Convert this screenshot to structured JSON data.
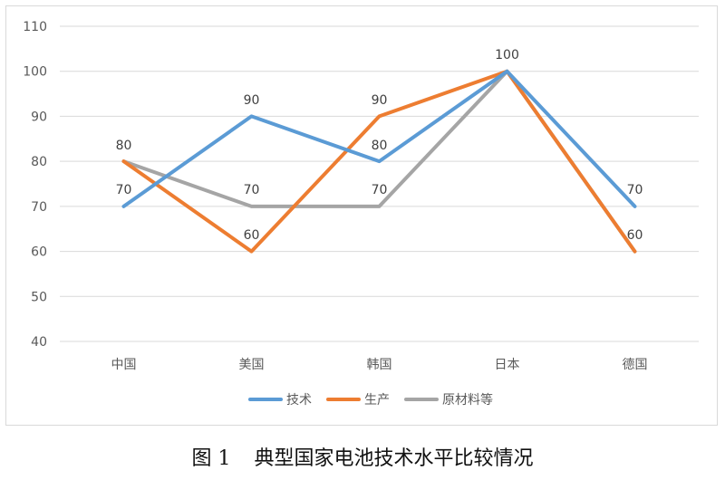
{
  "caption": {
    "number": "图 1",
    "text": "典型国家电池技术水平比较情况"
  },
  "chart_data": {
    "type": "line",
    "title": "",
    "xlabel": "",
    "ylabel": "",
    "categories": [
      "中国",
      "美国",
      "韩国",
      "日本",
      "德国"
    ],
    "ylim": [
      40,
      110
    ],
    "yticks": [
      40,
      50,
      60,
      70,
      80,
      90,
      100,
      110
    ],
    "grid": true,
    "legend_position": "bottom",
    "series": [
      {
        "name": "技术",
        "color": "#5b9bd5",
        "values": [
          70,
          90,
          80,
          100,
          70
        ]
      },
      {
        "name": "生产",
        "color": "#ed7d31",
        "values": [
          80,
          60,
          90,
          100,
          60
        ]
      },
      {
        "name": "原材料等",
        "color": "#a5a5a5",
        "values": [
          80,
          70,
          70,
          100,
          60
        ]
      }
    ],
    "data_labels": [
      {
        "category_index": 0,
        "text": "70"
      },
      {
        "category_index": 0,
        "text": "80"
      },
      {
        "category_index": 1,
        "text": "90"
      },
      {
        "category_index": 1,
        "text": "70"
      },
      {
        "category_index": 1,
        "text": "60"
      },
      {
        "category_index": 2,
        "text": "90"
      },
      {
        "category_index": 2,
        "text": "80"
      },
      {
        "category_index": 2,
        "text": "70"
      },
      {
        "category_index": 3,
        "text": "100"
      },
      {
        "category_index": 4,
        "text": "70"
      },
      {
        "category_index": 4,
        "text": "60"
      }
    ]
  }
}
